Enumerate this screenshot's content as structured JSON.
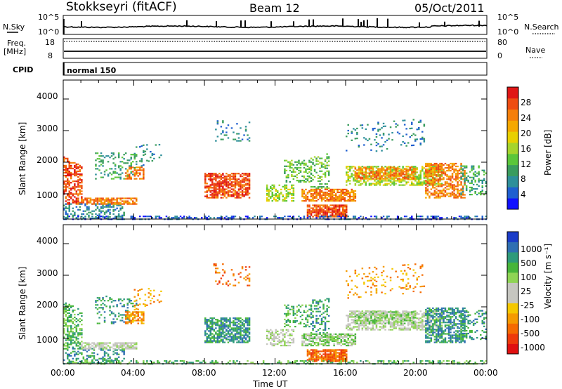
{
  "header": {
    "station": "Stokkseyri (fitACF)",
    "beam": "Beam 12",
    "date": "05/Oct/2011"
  },
  "strips": {
    "nsky_label": "N.Sky",
    "nsearch_label": "N.Search",
    "nsky_ticks": [
      "10^5",
      "10^0"
    ],
    "nsearch_ticks": [
      "10^5",
      "10^0"
    ],
    "freq_label": "Freq.",
    "freq_unit": "[MHz]",
    "freq_ticks": [
      "18",
      "8"
    ],
    "nave_label": "Nave",
    "nave_ticks": [
      "80",
      "0"
    ],
    "cpid_label": "CPID",
    "cpid_value": "normal 150"
  },
  "chart_data": [
    {
      "type": "heatmap",
      "name": "power",
      "xlabel": "",
      "ylabel": "Slant Range [km]",
      "yticks": [
        "1000",
        "2000",
        "3000",
        "4000"
      ],
      "ylim": [
        200,
        4600
      ],
      "xlim_hours": [
        0,
        24
      ],
      "colorbar": {
        "label": "Power [dB]",
        "ticks": [
          "4",
          "8",
          "12",
          "16",
          "20",
          "24",
          "28"
        ],
        "colors": [
          "#1010ff",
          "#1f5fd0",
          "#2e8f9a",
          "#3a9c5e",
          "#5bc63a",
          "#a6d42c",
          "#e8d000",
          "#f5a800",
          "#f57f0a",
          "#ee4d12",
          "#e01616"
        ]
      }
    },
    {
      "type": "heatmap",
      "name": "velocity",
      "xlabel": "Time UT",
      "ylabel": "Slant Range [km]",
      "yticks": [
        "1000",
        "2000",
        "3000",
        "4000"
      ],
      "ylim": [
        200,
        4600
      ],
      "xlim_hours": [
        0,
        24
      ],
      "xticks": [
        "00:00",
        "04:00",
        "08:00",
        "12:00",
        "16:00",
        "20:00",
        "00:00"
      ],
      "colorbar": {
        "label": "Velocity [m s⁻¹]",
        "ticks": [
          "1000",
          "500",
          "100",
          "25",
          "-25",
          "-100",
          "-500",
          "-1000"
        ],
        "colors": [
          "#1b3cc8",
          "#2f6fb2",
          "#2e9a7a",
          "#47b53a",
          "#8fd454",
          "#c6c6c0",
          "#c6c6c0",
          "#f5c800",
          "#f59a00",
          "#f56a00",
          "#ee3a0a",
          "#e01010"
        ]
      }
    }
  ]
}
